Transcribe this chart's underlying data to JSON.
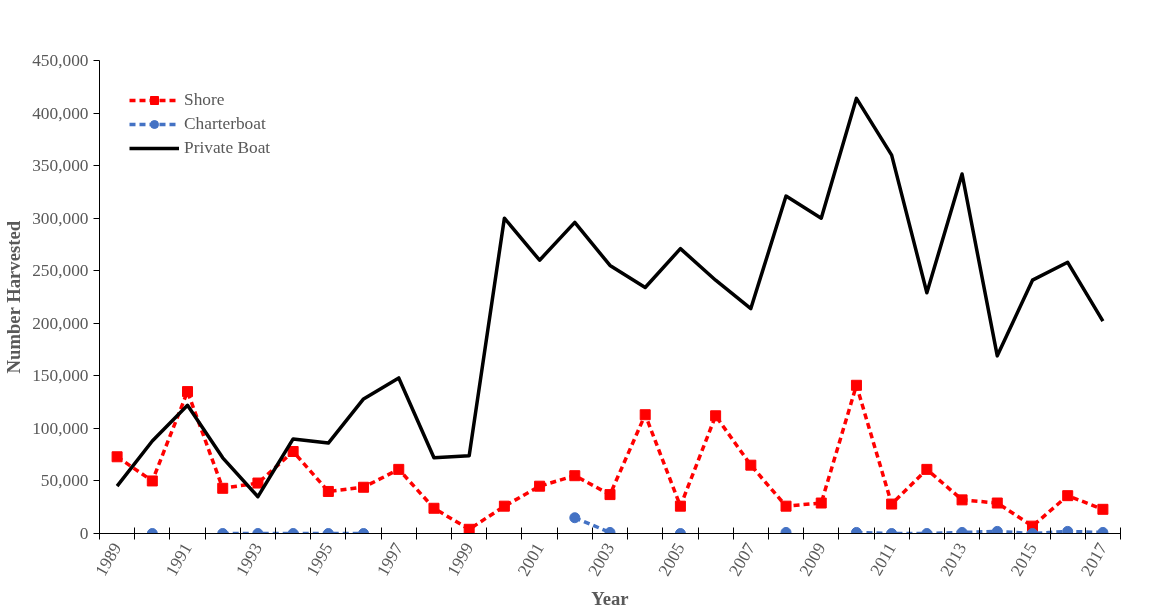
{
  "chart_data": {
    "type": "line",
    "xlabel": "Year",
    "ylabel": "Number Harvested",
    "categories": [
      "1989",
      null,
      "1991",
      null,
      "1993",
      null,
      "1995",
      null,
      "1997",
      null,
      "1999",
      null,
      "2001",
      null,
      "2003",
      null,
      "2005",
      null,
      "2007",
      null,
      "2009",
      null,
      "2011",
      null,
      "2013",
      null,
      "2015",
      null,
      "2017"
    ],
    "ylim": [
      0,
      450000
    ],
    "yticks": [
      {
        "value": 0,
        "label": "0"
      },
      {
        "value": 50000,
        "label": "50,000"
      },
      {
        "value": 100000,
        "label": "100,000"
      },
      {
        "value": 150000,
        "label": "150,000"
      },
      {
        "value": 200000,
        "label": "200,000"
      },
      {
        "value": 250000,
        "label": "250,000"
      },
      {
        "value": 300000,
        "label": "300,000"
      },
      {
        "value": 350000,
        "label": "350,000"
      },
      {
        "value": 400000,
        "label": "400,000"
      },
      {
        "value": 450000,
        "label": "450,000"
      }
    ],
    "grid": false,
    "legend": "top left",
    "series": [
      {
        "name": "Shore",
        "color": "#ff0000",
        "marker": "square",
        "line_style": "dashed",
        "values": [
          73000,
          50000,
          135000,
          43000,
          48000,
          78000,
          40000,
          44000,
          61000,
          24000,
          4000,
          26000,
          45000,
          55000,
          37000,
          113000,
          26000,
          112000,
          65000,
          26000,
          29000,
          141000,
          28000,
          61000,
          32000,
          29000,
          7000,
          36000,
          23000
        ]
      },
      {
        "name": "Charterboat",
        "color": "#4472c4",
        "marker": "circle",
        "line_style": "dashed",
        "values": [
          null,
          0,
          null,
          0,
          0,
          0,
          0,
          0,
          null,
          null,
          null,
          null,
          null,
          15000,
          1000,
          null,
          0,
          null,
          null,
          1000,
          null,
          1000,
          0,
          0,
          1000,
          2000,
          0,
          2000,
          1000
        ]
      },
      {
        "name": "Private Boat",
        "color": "#000000",
        "marker": "none",
        "line_style": "solid",
        "values": [
          45000,
          88000,
          122000,
          72000,
          35000,
          90000,
          86000,
          128000,
          148000,
          72000,
          74000,
          300000,
          260000,
          296000,
          255000,
          234000,
          271000,
          241000,
          214000,
          321000,
          300000,
          414000,
          360000,
          229000,
          342000,
          169000,
          241000,
          258000,
          202000
        ]
      }
    ]
  }
}
